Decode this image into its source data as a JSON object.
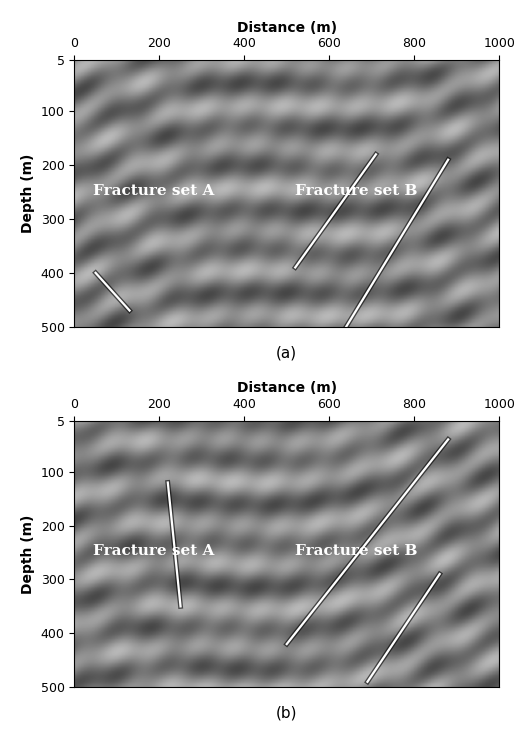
{
  "chart_data": [
    {
      "type": "image",
      "panel_label": "(a)",
      "x_label": "Distance (m)",
      "y_label": "Depth (m)",
      "xlim": [
        0,
        1000
      ],
      "ylim": [
        500,
        5
      ],
      "xticks": [
        0,
        200,
        400,
        600,
        800,
        1000
      ],
      "yticks": [
        5,
        100,
        200,
        300,
        400,
        500
      ],
      "annotations": [
        {
          "text": "Fracture set A",
          "x": 45,
          "y": 255
        },
        {
          "text": "Fracture set B",
          "x": 520,
          "y": 255
        }
      ],
      "lines": [
        {
          "x": [
            710,
            520
          ],
          "y": [
            180,
            390
          ]
        },
        {
          "x": [
            880,
            640
          ],
          "y": [
            190,
            500
          ]
        },
        {
          "x": [
            50,
            130
          ],
          "y": [
            400,
            470
          ]
        }
      ]
    },
    {
      "type": "image",
      "panel_label": "(b)",
      "x_label": "Distance (m)",
      "y_label": "Depth (m)",
      "xlim": [
        0,
        1000
      ],
      "ylim": [
        500,
        5
      ],
      "xticks": [
        0,
        200,
        400,
        600,
        800,
        1000
      ],
      "yticks": [
        5,
        100,
        200,
        300,
        400,
        500
      ],
      "annotations": [
        {
          "text": "Fracture set A",
          "x": 45,
          "y": 255
        },
        {
          "text": "Fracture set B",
          "x": 520,
          "y": 255
        }
      ],
      "lines": [
        {
          "x": [
            220,
            250
          ],
          "y": [
            120,
            350
          ]
        },
        {
          "x": [
            880,
            500
          ],
          "y": [
            40,
            420
          ]
        },
        {
          "x": [
            860,
            690
          ],
          "y": [
            290,
            490
          ]
        }
      ]
    }
  ]
}
